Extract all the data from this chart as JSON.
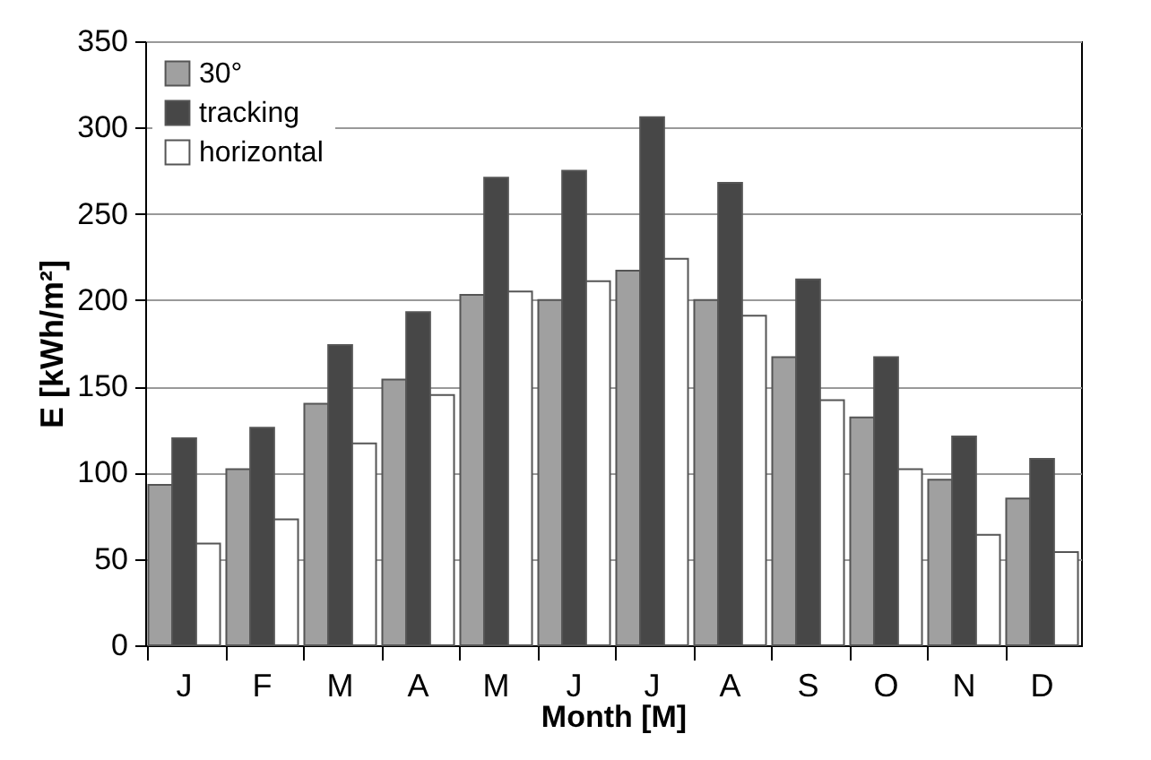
{
  "chart_data": {
    "type": "bar",
    "xlabel": "Month [M]",
    "ylabel": "E [kWh/m²]",
    "categories": [
      "J",
      "F",
      "M",
      "A",
      "M",
      "J",
      "J",
      "A",
      "S",
      "O",
      "N",
      "D"
    ],
    "series": [
      {
        "name": "30°",
        "color": "#a0a0a0",
        "values": [
          93,
          102,
          140,
          154,
          203,
          200,
          217,
          200,
          167,
          132,
          96,
          85
        ]
      },
      {
        "name": "tracking",
        "color": "#474747",
        "values": [
          120,
          126,
          174,
          193,
          271,
          275,
          306,
          268,
          212,
          167,
          121,
          108
        ]
      },
      {
        "name": "horizontal",
        "color": "#ffffff",
        "values": [
          59,
          73,
          117,
          145,
          205,
          211,
          224,
          191,
          142,
          102,
          64,
          54
        ]
      }
    ],
    "ylim": [
      0,
      350
    ],
    "yticks": [
      0,
      50,
      100,
      150,
      200,
      250,
      300,
      350
    ],
    "grid": "y",
    "legend": "top left"
  }
}
